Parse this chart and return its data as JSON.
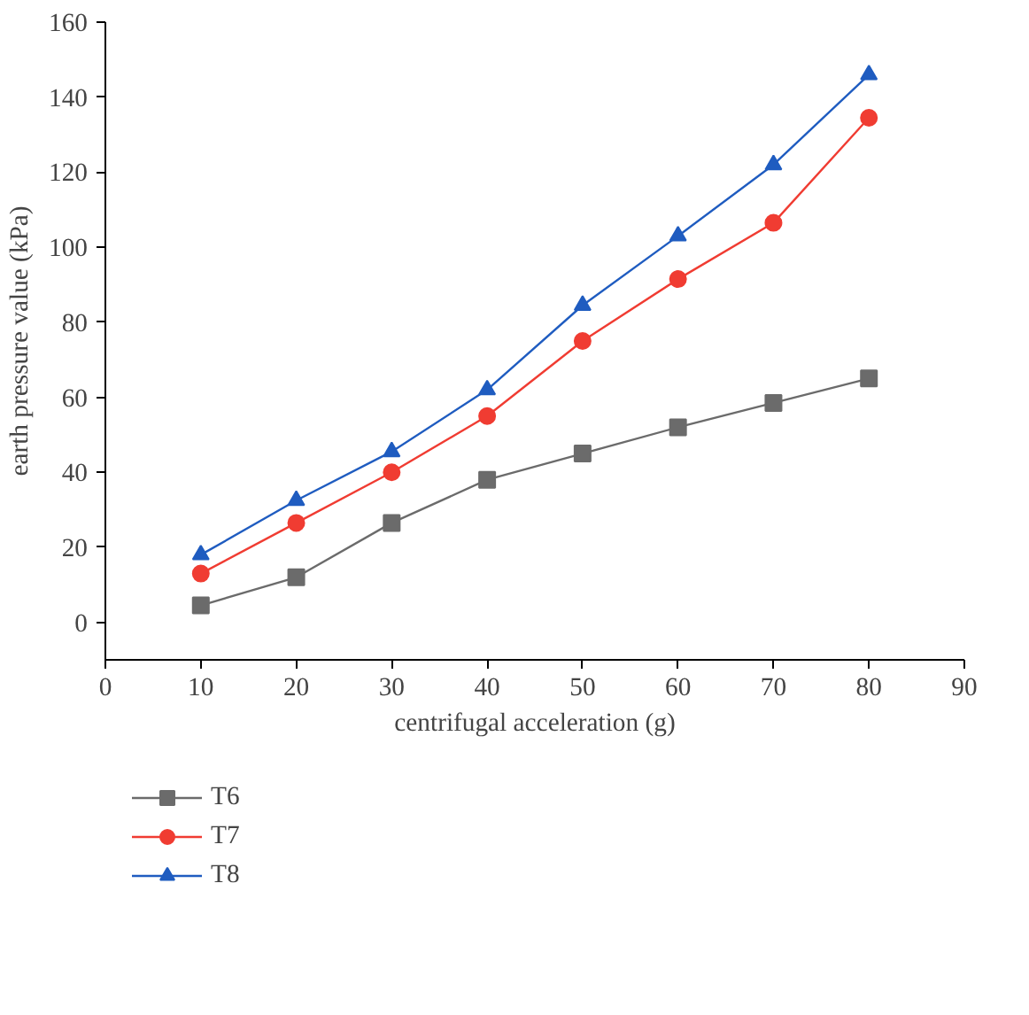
{
  "chart_data": {
    "type": "line",
    "xlabel": "centrifugal acceleration (g)",
    "ylabel": "earth pressure value (kPa)",
    "x": [
      10,
      20,
      30,
      40,
      50,
      60,
      70,
      80
    ],
    "series": [
      {
        "name": "T6",
        "color": "#6b6b6b",
        "marker": "square",
        "values": [
          4.5,
          12,
          26.5,
          38,
          45,
          52,
          58.5,
          65
        ]
      },
      {
        "name": "T7",
        "color": "#f03c32",
        "marker": "circle",
        "values": [
          13,
          26.5,
          40,
          55,
          75,
          91.5,
          106.5,
          134.5
        ]
      },
      {
        "name": "T8",
        "color": "#1f5cc0",
        "marker": "triangle",
        "values": [
          18,
          32.5,
          45.5,
          62,
          84.5,
          103,
          122,
          146
        ]
      }
    ],
    "xlim": [
      0,
      90
    ],
    "xticks": [
      0,
      10,
      20,
      30,
      40,
      50,
      60,
      70,
      80,
      90
    ],
    "ylim": [
      -10,
      160
    ],
    "yticks": [
      0,
      20,
      40,
      60,
      80,
      100,
      120,
      140,
      160
    ],
    "grid": false,
    "legend": "bottom left",
    "line_style": "solid"
  }
}
